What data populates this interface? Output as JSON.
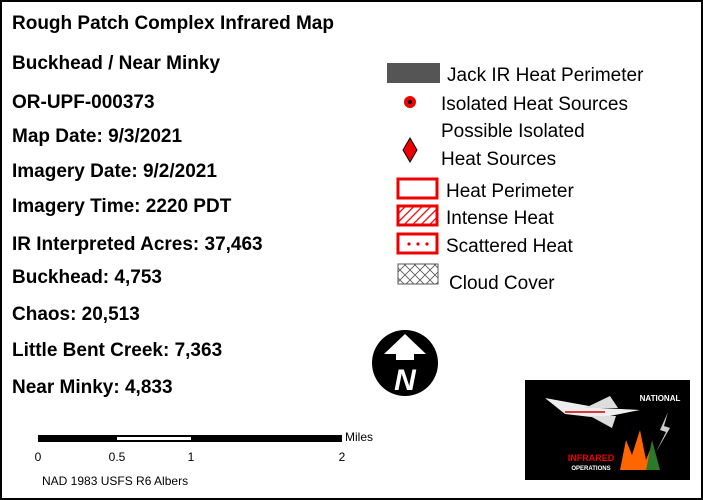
{
  "info": {
    "lines": [
      "Rough Patch Complex Infrared Map",
      "Buckhead / Near Minky",
      "OR-UPF-000373",
      "Map Date: 9/3/2021",
      "Imagery Date:  9/2/2021",
      "Imagery Time: 2220 PDT",
      "IR Interpreted Acres: 37,463",
      "Buckhead: 4,753",
      "Chaos: 20,513",
      "Little Bent Creek: 7,363",
      "Near Minky: 4,833"
    ]
  },
  "legend": {
    "jack_perimeter": "Jack IR Heat Perimeter",
    "isolated": "Isolated Heat Sources",
    "possible": [
      "Possible Isolated",
      "Heat Sources"
    ],
    "perimeter": "Heat Perimeter",
    "intense": "Intense Heat",
    "scattered": "Scattered Heat",
    "cloud": "Cloud Cover"
  },
  "scale": {
    "unit": "Miles",
    "labels": [
      "0",
      "0.5",
      "1",
      "2"
    ]
  },
  "datum": "NAD 1983 USFS R6 Albers",
  "north": "N",
  "logo": {
    "top": "NATIONAL",
    "middle": "INFRARED",
    "bottom": "OPERATIONS"
  }
}
